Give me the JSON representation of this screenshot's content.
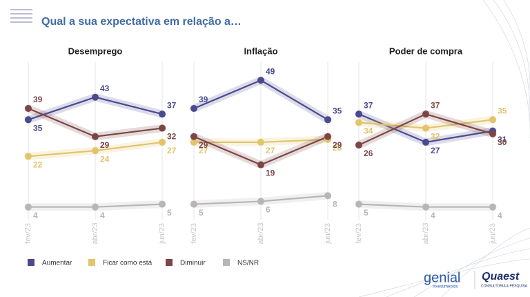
{
  "header": {
    "title": "Qual a sua expectativa em relação a…"
  },
  "chart_data": [
    {
      "type": "line",
      "title": "Desemprego",
      "categories": [
        "fev/23",
        "abr/23",
        "jun/23"
      ],
      "ylim": [
        0,
        52
      ],
      "series": [
        {
          "name": "Aumentar",
          "color": "#4b4a8f",
          "values": [
            35,
            43,
            37
          ]
        },
        {
          "name": "Ficar como está",
          "color": "#e2c46b",
          "values": [
            22,
            24,
            27
          ]
        },
        {
          "name": "Diminuir",
          "color": "#7d4646",
          "values": [
            39,
            29,
            32
          ]
        },
        {
          "name": "NS/NR",
          "color": "#b8b5b5",
          "values": [
            4,
            4,
            5
          ]
        }
      ]
    },
    {
      "type": "line",
      "title": "Inflação",
      "categories": [
        "fev/23",
        "abr/23",
        "jun/23"
      ],
      "ylim": [
        0,
        52
      ],
      "series": [
        {
          "name": "Aumentar",
          "color": "#4b4a8f",
          "values": [
            39,
            49,
            35
          ]
        },
        {
          "name": "Ficar como está",
          "color": "#e2c46b",
          "values": [
            27,
            27,
            28
          ]
        },
        {
          "name": "Diminuir",
          "color": "#7d4646",
          "values": [
            29,
            19,
            29
          ]
        },
        {
          "name": "NS/NR",
          "color": "#b8b5b5",
          "values": [
            5,
            6,
            8
          ]
        }
      ]
    },
    {
      "type": "line",
      "title": "Poder de compra",
      "categories": [
        "fev/23",
        "abr/23",
        "jun/23"
      ],
      "ylim": [
        0,
        52
      ],
      "series": [
        {
          "name": "Aumentar",
          "color": "#4b4a8f",
          "values": [
            37,
            27,
            31
          ]
        },
        {
          "name": "Ficar como está",
          "color": "#e2c46b",
          "values": [
            34,
            32,
            35
          ]
        },
        {
          "name": "Diminuir",
          "color": "#7d4646",
          "values": [
            26,
            37,
            30
          ]
        },
        {
          "name": "NS/NR",
          "color": "#b8b5b5",
          "values": [
            5,
            4,
            4
          ]
        }
      ]
    }
  ],
  "footer": {
    "brand1": "genial",
    "brand1_sub": "investimentos",
    "brand2": "Quaest",
    "brand2_sub": "CONSULTORIA & PESQUISA"
  }
}
